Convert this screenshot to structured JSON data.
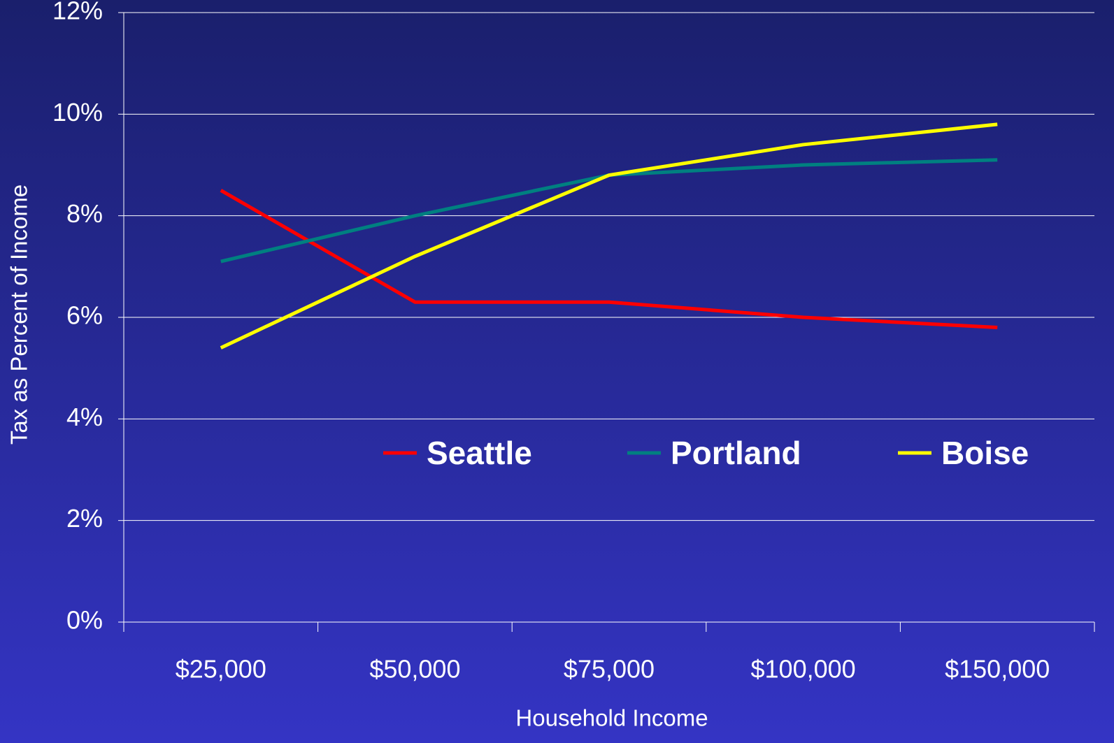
{
  "chart_data": {
    "type": "line",
    "x_label": "Household Income",
    "y_label": "Tax as Percent of Income",
    "categories": [
      "$25,000",
      "$50,000",
      "$75,000",
      "$100,000",
      "$150,000"
    ],
    "series": [
      {
        "name": "Seattle",
        "color": "#ff0000",
        "values": [
          8.5,
          6.3,
          6.3,
          6.0,
          5.8
        ]
      },
      {
        "name": "Portland",
        "color": "#008080",
        "values": [
          7.1,
          8.0,
          8.8,
          9.0,
          9.1
        ]
      },
      {
        "name": "Boise",
        "color": "#ffff00",
        "values": [
          5.4,
          7.2,
          8.8,
          9.4,
          9.8
        ]
      }
    ],
    "ylim": [
      0,
      12
    ],
    "yticks": [
      {
        "value": 0,
        "label": "0%"
      },
      {
        "value": 2,
        "label": "2%"
      },
      {
        "value": 4,
        "label": "4%"
      },
      {
        "value": 6,
        "label": "6%"
      },
      {
        "value": 8,
        "label": "8%"
      },
      {
        "value": 10,
        "label": "10%"
      },
      {
        "value": 12,
        "label": "12%"
      }
    ],
    "grid": true
  }
}
